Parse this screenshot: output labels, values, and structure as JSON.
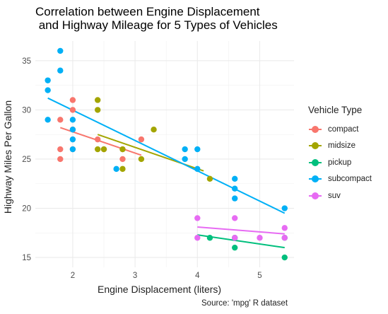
{
  "chart_data": {
    "type": "scatter",
    "title": [
      "Correlation between Engine Displacement",
      " and Highway Mileage for 5 Types of Vehicles"
    ],
    "xlabel": "Engine Displacement (liters)",
    "ylabel": "Highway Miles Per Gallon",
    "caption": "Source: 'mpg' R dataset",
    "xlim": [
      1.4,
      5.55
    ],
    "ylim": [
      14.0,
      37.0
    ],
    "xticks": [
      2,
      3,
      4,
      5
    ],
    "yticks": [
      15,
      20,
      25,
      30,
      35
    ],
    "grid": true,
    "legend": {
      "title": "Vehicle Type",
      "placement": "right"
    },
    "series": [
      {
        "name": "compact",
        "color": "#F8766D",
        "points": [
          [
            1.8,
            29
          ],
          [
            1.8,
            25
          ],
          [
            1.8,
            26
          ],
          [
            2.0,
            31
          ],
          [
            2.0,
            30
          ],
          [
            2.0,
            28
          ],
          [
            2.0,
            26
          ],
          [
            2.4,
            27
          ],
          [
            2.5,
            26
          ],
          [
            2.8,
            26
          ],
          [
            2.8,
            25
          ],
          [
            3.1,
            27
          ]
        ],
        "fit": [
          [
            1.8,
            28.2
          ],
          [
            3.1,
            25.4
          ]
        ]
      },
      {
        "name": "midsize",
        "color": "#A3A500",
        "points": [
          [
            2.4,
            31
          ],
          [
            2.4,
            30
          ],
          [
            2.4,
            26
          ],
          [
            2.5,
            26
          ],
          [
            2.8,
            26
          ],
          [
            2.8,
            24
          ],
          [
            3.1,
            25
          ],
          [
            3.3,
            28
          ],
          [
            4.2,
            23
          ]
        ],
        "fit": [
          [
            2.4,
            27.5
          ],
          [
            4.1,
            23.8
          ]
        ]
      },
      {
        "name": "pickup",
        "color": "#00BF7D",
        "points": [
          [
            4.2,
            17
          ],
          [
            4.6,
            17
          ],
          [
            4.6,
            16
          ],
          [
            5.4,
            17
          ],
          [
            5.4,
            15
          ]
        ],
        "fit": [
          [
            4.0,
            17.3
          ],
          [
            5.4,
            16.0
          ]
        ]
      },
      {
        "name": "subcompact",
        "color": "#00B0F6",
        "points": [
          [
            1.6,
            33
          ],
          [
            1.6,
            32
          ],
          [
            1.6,
            29
          ],
          [
            1.8,
            36
          ],
          [
            1.8,
            34
          ],
          [
            2.0,
            29
          ],
          [
            2.0,
            28
          ],
          [
            2.0,
            27
          ],
          [
            2.0,
            26
          ],
          [
            2.7,
            24
          ],
          [
            3.8,
            26
          ],
          [
            3.8,
            25
          ],
          [
            4.0,
            26
          ],
          [
            4.0,
            24
          ],
          [
            4.6,
            23
          ],
          [
            4.6,
            22
          ],
          [
            4.6,
            21
          ],
          [
            5.4,
            20
          ]
        ],
        "fit": [
          [
            1.6,
            31.2
          ],
          [
            5.4,
            19.5
          ]
        ]
      },
      {
        "name": "suv",
        "color": "#E76BF3",
        "points": [
          [
            4.0,
            19
          ],
          [
            4.0,
            17
          ],
          [
            4.6,
            19
          ],
          [
            4.6,
            17
          ],
          [
            5.0,
            17
          ],
          [
            5.4,
            18
          ],
          [
            5.4,
            17
          ]
        ],
        "fit": [
          [
            4.0,
            18.1
          ],
          [
            5.4,
            17.4
          ]
        ]
      }
    ]
  }
}
